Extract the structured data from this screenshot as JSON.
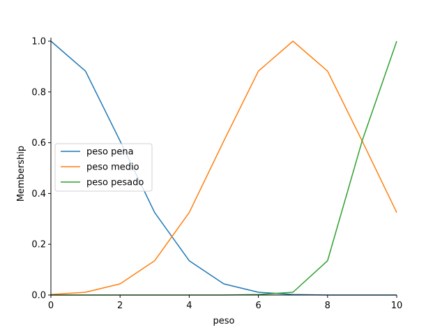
{
  "chart_data": {
    "type": "line",
    "title": "",
    "xlabel": "peso",
    "ylabel": "Membership",
    "xlim": [
      0,
      10
    ],
    "ylim": [
      0,
      1.0
    ],
    "x_ticks": [
      "0",
      "2",
      "4",
      "6",
      "8",
      "10"
    ],
    "y_ticks": [
      "0.0",
      "0.2",
      "0.4",
      "0.6",
      "0.8",
      "1.0"
    ],
    "grid": false,
    "legend_position": "center-left",
    "x": [
      0,
      1,
      2,
      3,
      4,
      5,
      6,
      7,
      8,
      9,
      10
    ],
    "series": [
      {
        "name": "peso pena",
        "color": "#1f77b4",
        "values": [
          1.0,
          0.882,
          0.607,
          0.325,
          0.135,
          0.044,
          0.011,
          0.002,
          0.0,
          0.0,
          0.0
        ]
      },
      {
        "name": "peso medio",
        "color": "#ff7f0e",
        "values": [
          0.002,
          0.011,
          0.044,
          0.135,
          0.325,
          0.607,
          0.882,
          1.0,
          0.882,
          0.607,
          0.325
        ]
      },
      {
        "name": "peso pesado",
        "color": "#2ca02c",
        "values": [
          0.0,
          0.0,
          0.0,
          0.0,
          0.0,
          0.0,
          0.002,
          0.011,
          0.135,
          0.607,
          1.0
        ]
      }
    ]
  }
}
